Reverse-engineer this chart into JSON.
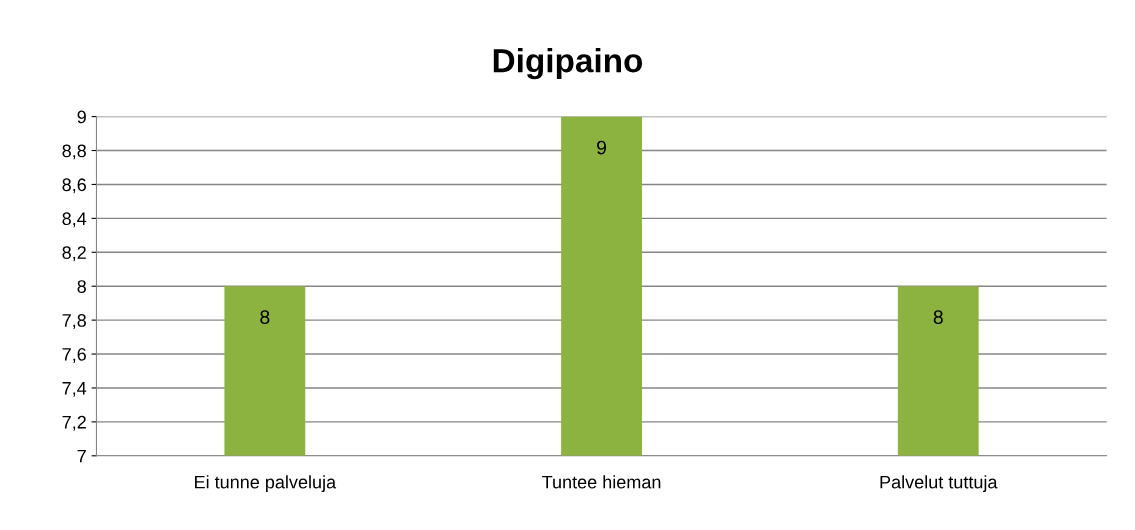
{
  "chart_data": {
    "type": "bar",
    "title": "Digipaino",
    "categories": [
      "Ei tunne palveluja",
      "Tuntee hieman",
      "Palvelut tuttuja"
    ],
    "values": [
      8,
      9,
      8
    ],
    "color": "#8cb33f",
    "ylim": [
      7,
      9
    ],
    "yticks": [
      7,
      {
        "value": 7.2,
        "label": "7,2"
      },
      {
        "value": 7.4,
        "label": "7,4"
      },
      {
        "value": 7.6,
        "label": "7,6"
      },
      {
        "value": 7.8,
        "label": "7,8"
      },
      8,
      {
        "value": 8.2,
        "label": "8,2"
      },
      {
        "value": 8.4,
        "label": "8,4"
      },
      {
        "value": 8.6,
        "label": "8,6"
      },
      {
        "value": 8.8,
        "label": "8,8"
      },
      9
    ],
    "grid": "y",
    "data_labels": true
  }
}
